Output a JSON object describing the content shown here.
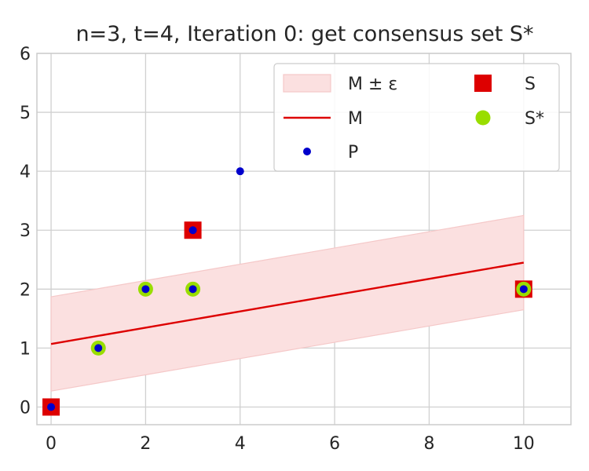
{
  "chart_data": {
    "type": "scatter",
    "title": "n=3, t=4, Iteration 0: get consensus set S*",
    "xlim": [
      -0.3,
      11
    ],
    "ylim": [
      -0.3,
      6
    ],
    "xticks": [
      0,
      2,
      4,
      6,
      8,
      10
    ],
    "yticks": [
      0,
      1,
      2,
      3,
      4,
      5,
      6
    ],
    "grid": true,
    "legend_position": "top-right",
    "epsilon": 0.8,
    "model_line": {
      "name": "M",
      "x": [
        0,
        10
      ],
      "y": [
        1.07,
        2.45
      ]
    },
    "band": {
      "name": "M ± ε"
    },
    "series": [
      {
        "name": "S",
        "marker": "square",
        "color": "#dd0000",
        "points": [
          [
            0,
            0
          ],
          [
            3,
            3
          ],
          [
            10,
            2
          ]
        ]
      },
      {
        "name": "S*",
        "marker": "circle",
        "color": "#99dd00",
        "points": [
          [
            1,
            1
          ],
          [
            2,
            2
          ],
          [
            3,
            2
          ],
          [
            10,
            2
          ]
        ]
      },
      {
        "name": "P",
        "marker": "dot",
        "color": "#0000cc",
        "points": [
          [
            0,
            0
          ],
          [
            1,
            1
          ],
          [
            2,
            2
          ],
          [
            3,
            2
          ],
          [
            3,
            3
          ],
          [
            4,
            4
          ],
          [
            10,
            2
          ]
        ]
      }
    ],
    "legend": [
      {
        "label": "M ± ε",
        "kind": "band"
      },
      {
        "label": "M",
        "kind": "line"
      },
      {
        "label": "P",
        "kind": "dot"
      },
      {
        "label": "S",
        "kind": "square"
      },
      {
        "label": "S*",
        "kind": "circle"
      }
    ],
    "colors": {
      "band_fill": "#fbe0e0",
      "band_edge": "#f5c8c8",
      "line": "#dd0000",
      "grid": "#d0d0d0",
      "axes": "#cccccc"
    }
  }
}
